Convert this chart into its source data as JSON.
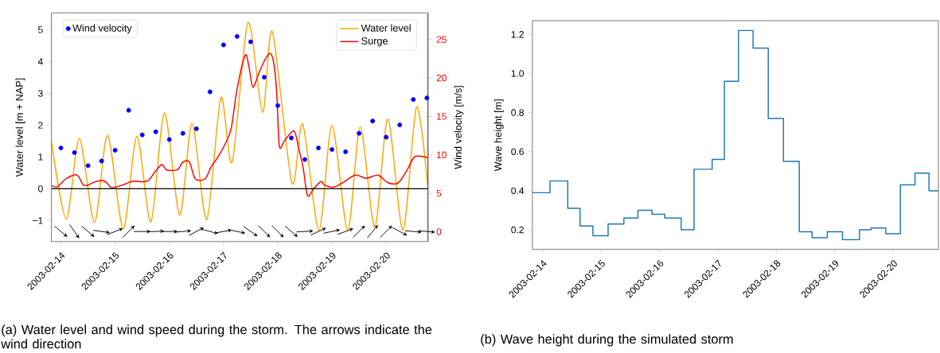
{
  "chart_data": [
    {
      "type": "line",
      "ylabel": "Water level [m + NAP]",
      "y2label": "Wind velocity [m/s]",
      "annotations": [
        "(a) Water level and wind speed during the storm. The arrows indicate the wind direction"
      ],
      "xlim": [
        "2003-02-13T19:48",
        "2003-02-20T18:30"
      ],
      "xticks": [
        "2003-02-14",
        "2003-02-15",
        "2003-02-16",
        "2003-02-17",
        "2003-02-18",
        "2003-02-19",
        "2003-02-20"
      ],
      "ylim": [
        -1.66,
        5.53
      ],
      "yticks": [
        {
          "value": -1,
          "label": "−1"
        },
        0,
        1,
        2,
        3,
        4,
        5
      ],
      "y2lim": [
        -1.27,
        28.46
      ],
      "y2ticks": [
        0,
        5,
        10,
        15,
        20,
        25
      ],
      "legend": "top right",
      "ref_lines": [
        {
          "axis": "y",
          "value": 0,
          "color": "#000000"
        }
      ],
      "series": [
        {
          "name": "Water level",
          "type": "line",
          "color": "#ffa500",
          "x": [
            "2003-02-13T19:48",
            "2003-02-14T02:24",
            "2003-02-14T08:10",
            "2003-02-14T14:53",
            "2003-02-14T20:38",
            "2003-02-15T03:36",
            "2003-02-15T09:36",
            "2003-02-15T15:50",
            "2003-02-15T21:50",
            "2003-02-16T04:34",
            "2003-02-16T10:05",
            "2003-02-16T16:34",
            "2003-02-16T22:48",
            "2003-02-17T03:50",
            "2003-02-17T10:48",
            "2003-02-17T17:17",
            "2003-02-17T21:36",
            "2003-02-18T06:14",
            "2003-02-18T11:02",
            "2003-02-18T18:14",
            "2003-02-19T00:00",
            "2003-02-19T06:58",
            "2003-02-19T12:29",
            "2003-02-19T18:58",
            "2003-02-20T00:43",
            "2003-02-20T07:26",
            "2003-02-20T13:26",
            "2003-02-20T18:29"
          ],
          "values": [
            1.51,
            -0.95,
            1.58,
            -1.06,
            1.68,
            -1.25,
            1.65,
            -1.04,
            2.38,
            -0.82,
            2.05,
            -0.97,
            2.86,
            0.84,
            5.22,
            2.4,
            4.94,
            0.19,
            2.04,
            -1.3,
            1.99,
            -1.3,
            1.95,
            -1.2,
            2.2,
            -1.3,
            2.57,
            0.02
          ]
        },
        {
          "name": "Surge",
          "type": "line",
          "color": "#ff0000",
          "x": [
            "2003-02-13T19:48",
            "2003-02-13T22:05",
            "2003-02-14T00:00",
            "2003-02-14T02:10",
            "2003-02-14T06:14",
            "2003-02-14T07:55",
            "2003-02-14T09:50",
            "2003-02-14T11:46",
            "2003-02-14T15:07",
            "2003-02-14T18:29",
            "2003-02-14T20:24",
            "2003-02-14T22:34",
            "2003-02-15T03:22",
            "2003-02-15T07:26",
            "2003-02-15T14:10",
            "2003-02-15T17:31",
            "2003-02-15T20:38",
            "2003-02-15T22:48",
            "2003-02-16T03:36",
            "2003-02-16T06:00",
            "2003-02-16T08:53",
            "2003-02-16T11:31",
            "2003-02-16T15:50",
            "2003-02-16T18:29",
            "2003-02-16T21:22",
            "2003-02-17T00:43",
            "2003-02-17T03:22",
            "2003-02-17T06:00",
            "2003-02-17T09:36",
            "2003-02-17T11:17",
            "2003-02-17T12:58",
            "2003-02-17T15:36",
            "2003-02-17T18:00",
            "2003-02-17T20:24",
            "2003-02-17T22:05",
            "2003-02-17T23:31",
            "2003-02-18T00:43",
            "2003-02-18T03:07",
            "2003-02-18T07:12",
            "2003-02-18T09:07",
            "2003-02-18T11:17",
            "2003-02-18T13:12",
            "2003-02-18T16:05",
            "2003-02-18T19:12",
            "2003-02-18T20:38",
            "2003-02-19T00:43",
            "2003-02-19T04:48",
            "2003-02-19T10:19",
            "2003-02-19T15:07",
            "2003-02-19T20:24",
            "2003-02-20T00:43",
            "2003-02-20T05:17",
            "2003-02-20T09:22",
            "2003-02-20T12:43",
            "2003-02-20T18:29"
          ],
          "values": [
            0.1,
            0.05,
            0.16,
            0.31,
            0.44,
            0.38,
            0.12,
            0.11,
            0.22,
            0.26,
            0.18,
            0.03,
            0.12,
            0.23,
            0.24,
            0.52,
            0.76,
            0.59,
            0.6,
            0.84,
            0.84,
            0.31,
            0.31,
            0.69,
            0.98,
            1.41,
            1.89,
            3.14,
            4.2,
            3.82,
            3.19,
            3.63,
            4.01,
            4.26,
            4.01,
            3.05,
            1.34,
            1.53,
            1.82,
            1.32,
            0.64,
            -0.22,
            0.02,
            0.23,
            0.12,
            0.05,
            0.19,
            0.43,
            0.33,
            0.43,
            0.19,
            0.18,
            0.6,
            1.01,
            0.97
          ]
        },
        {
          "name": "Wind velocity",
          "type": "scatter",
          "axis": "y2",
          "color": "#0000ff",
          "x": [
            "2003-02-14T00:00",
            "2003-02-14T06:00",
            "2003-02-14T12:00",
            "2003-02-14T18:00",
            "2003-02-15T00:00",
            "2003-02-15T06:00",
            "2003-02-15T12:00",
            "2003-02-15T18:00",
            "2003-02-16T00:00",
            "2003-02-16T06:00",
            "2003-02-16T12:00",
            "2003-02-16T18:00",
            "2003-02-17T00:00",
            "2003-02-17T06:00",
            "2003-02-17T12:00",
            "2003-02-17T18:00",
            "2003-02-18T00:00",
            "2003-02-18T06:00",
            "2003-02-18T12:00",
            "2003-02-18T18:00",
            "2003-02-19T00:00",
            "2003-02-19T06:00",
            "2003-02-19T12:00",
            "2003-02-19T18:00",
            "2003-02-20T00:00",
            "2003-02-20T06:00",
            "2003-02-20T12:00",
            "2003-02-20T18:00"
          ],
          "values": [
            10.9,
            10.3,
            8.6,
            9.2,
            10.6,
            15.8,
            12.6,
            13.0,
            12.0,
            12.8,
            13.4,
            18.2,
            24.3,
            25.4,
            24.7,
            20.1,
            16.4,
            12.2,
            9.4,
            10.9,
            10.7,
            10.4,
            12.8,
            14.4,
            12.3,
            13.9,
            17.2,
            17.4
          ]
        }
      ]
    },
    {
      "type": "step",
      "ylabel": "Wave height [m]",
      "annotations": [
        "(b) Wave height during the simulated storm"
      ],
      "xlim": [
        "2003-02-13T19:48",
        "2003-02-20T18:30"
      ],
      "xticks": [
        "2003-02-14",
        "2003-02-15",
        "2003-02-16",
        "2003-02-17",
        "2003-02-18",
        "2003-02-19",
        "2003-02-20"
      ],
      "ylim": [
        0.1,
        1.27
      ],
      "yticks": [
        0.2,
        0.4,
        0.6,
        0.8,
        {
          "value": 1.0,
          "label": "1.0"
        },
        {
          "value": 1.2,
          "label": "1.2"
        }
      ],
      "series": [
        {
          "color": "#1f77b4",
          "x": [
            "2003-02-13T19:48",
            "2003-02-14T03:01",
            "2003-02-14T10:19",
            "2003-02-14T15:22",
            "2003-02-14T20:38",
            "2003-02-15T02:53",
            "2003-02-15T09:22",
            "2003-02-15T15:07",
            "2003-02-15T20:53",
            "2003-02-16T02:10",
            "2003-02-16T08:53",
            "2003-02-16T14:10",
            "2003-02-16T21:36",
            "2003-02-17T02:38",
            "2003-02-17T08:24",
            "2003-02-17T14:24",
            "2003-02-17T20:38",
            "2003-02-18T02:53",
            "2003-02-18T09:22",
            "2003-02-18T14:38",
            "2003-02-18T20:53",
            "2003-02-19T03:07",
            "2003-02-19T10:05",
            "2003-02-19T14:53",
            "2003-02-19T20:53",
            "2003-02-20T02:53",
            "2003-02-20T08:53",
            "2003-02-20T14:38"
          ],
          "values": [
            0.39,
            0.45,
            0.31,
            0.22,
            0.17,
            0.23,
            0.26,
            0.3,
            0.28,
            0.26,
            0.2,
            0.51,
            0.56,
            0.96,
            1.22,
            1.13,
            0.77,
            0.55,
            0.19,
            0.16,
            0.19,
            0.15,
            0.2,
            0.21,
            0.18,
            0.43,
            0.49,
            0.4
          ]
        }
      ]
    }
  ]
}
